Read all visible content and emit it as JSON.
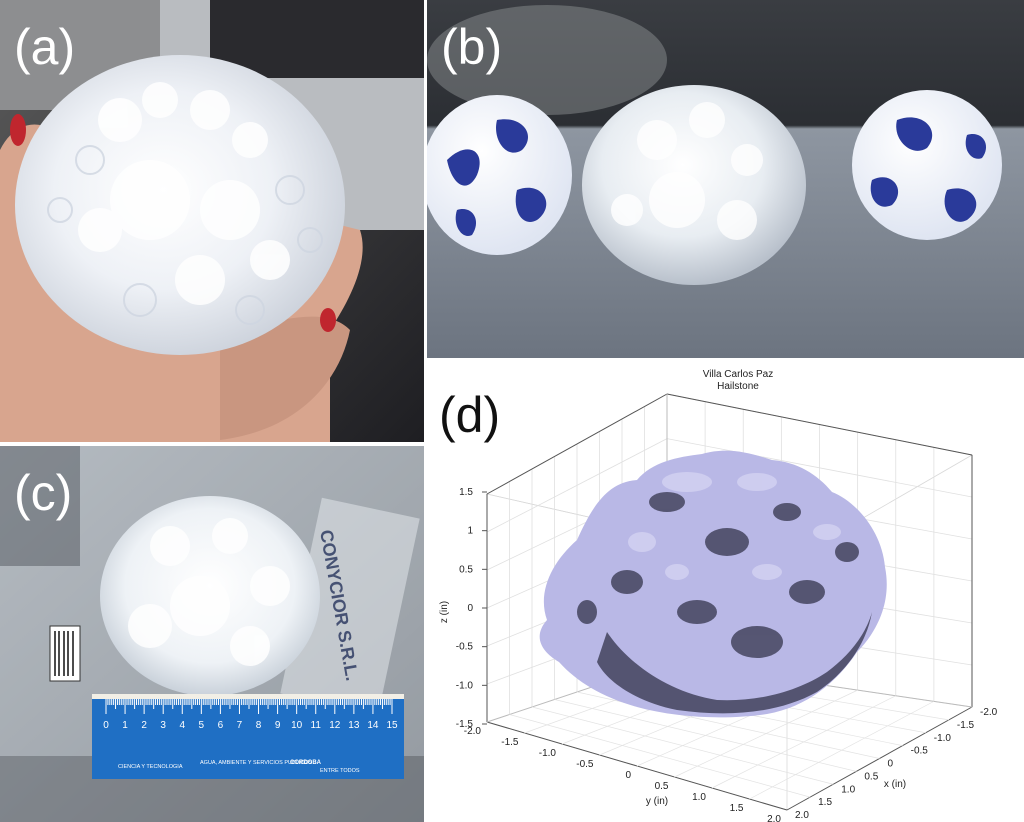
{
  "panels": {
    "a": {
      "label": "(a)"
    },
    "b": {
      "label": "(b)"
    },
    "c": {
      "label": "(c)",
      "ruler_ticks": [
        "0",
        "1",
        "2",
        "3",
        "4",
        "5",
        "6",
        "7",
        "8",
        "9",
        "10",
        "11",
        "12",
        "13",
        "14",
        "15"
      ],
      "bag_text": "CONYCIOR S.R.L.",
      "logos": [
        "CIENCIA Y TECNOLOGIA",
        "AGUA, AMBIENTE Y SERVICIOS PUBLICOS",
        "CORDOBA",
        "ENTRE TODOS"
      ]
    },
    "d": {
      "label": "(d)",
      "title_line1": "Villa Carlos Paz",
      "title_line2": "Hailstone"
    }
  },
  "chart_data": {
    "type": "3d-surface",
    "title": "Villa Carlos Paz Hailstone",
    "xlabel": "x (in)",
    "ylabel": "y (in)",
    "zlabel": "z (in)",
    "x_ticks": [
      "-2.0",
      "-1.5",
      "-1.0",
      "-0.5",
      "0",
      "0.5",
      "1.0",
      "1.5",
      "2.0"
    ],
    "y_ticks": [
      "-2.0",
      "-1.5",
      "-1.0",
      "-0.5",
      "0",
      "0.5",
      "1.0",
      "1.5",
      "2.0"
    ],
    "z_ticks": [
      "1.5",
      "1",
      "0.5",
      "0",
      "-0.5",
      "-1.0",
      "-1.5"
    ],
    "xlim": [
      -2.0,
      2.0
    ],
    "ylim": [
      -2.0,
      2.0
    ],
    "zlim": [
      -1.5,
      1.5
    ],
    "grid": true,
    "surface_color": "#b9b8e6"
  }
}
